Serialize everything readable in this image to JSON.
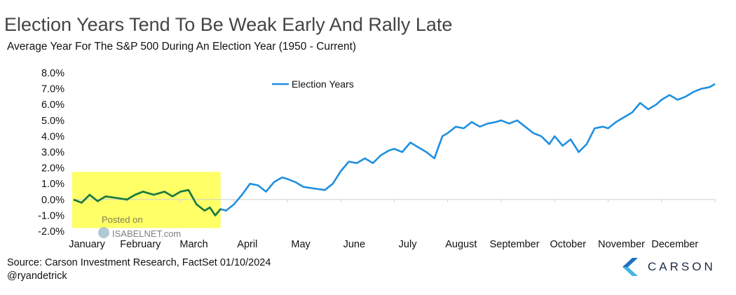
{
  "title": "Election Years Tend To Be Weak Early And Rally Late",
  "subtitle": "Average Year For The S&P 500 During An Election Year (1950 - Current)",
  "source": "Source: Carson Investment Research, FactSet 01/10/2024",
  "handle": "@ryandetrick",
  "logo_text": "CARSON",
  "watermark": {
    "line1": "Posted on",
    "line2": "ISABELNET.com"
  },
  "colors": {
    "series": "#1e90e0",
    "highlight_line": "#1e7a3c",
    "highlight_box": "#ffff66"
  },
  "chart_data": {
    "type": "line",
    "title": "Election Years Tend To Be Weak Early And Rally Late",
    "subtitle": "Average Year For The S&P 500 During An Election Year (1950 - Current)",
    "legend": {
      "position": "top-center",
      "entries": [
        "Election Years"
      ]
    },
    "ylim": [
      -2.0,
      8.0
    ],
    "y_ticks": [
      "-2.0%",
      "-1.0%",
      "0.0%",
      "1.0%",
      "2.0%",
      "3.0%",
      "4.0%",
      "5.0%",
      "6.0%",
      "7.0%",
      "8.0%"
    ],
    "x_ticks": [
      "January",
      "February",
      "March",
      "April",
      "May",
      "June",
      "July",
      "August",
      "September",
      "October",
      "November",
      "December"
    ],
    "highlight": {
      "from_month": 0,
      "to_month": 2.75,
      "label": "January - March"
    },
    "series": [
      {
        "name": "Election Years",
        "x": [
          0,
          0.15,
          0.3,
          0.45,
          0.6,
          0.8,
          1.0,
          1.15,
          1.3,
          1.5,
          1.7,
          1.85,
          2.0,
          2.15,
          2.3,
          2.45,
          2.55,
          2.65,
          2.75,
          2.85,
          3.0,
          3.15,
          3.3,
          3.45,
          3.6,
          3.75,
          3.9,
          4.0,
          4.15,
          4.3,
          4.5,
          4.7,
          4.85,
          5.0,
          5.15,
          5.3,
          5.45,
          5.6,
          5.75,
          5.9,
          6.0,
          6.15,
          6.3,
          6.45,
          6.6,
          6.75,
          6.9,
          7.0,
          7.15,
          7.3,
          7.45,
          7.6,
          7.75,
          7.9,
          8.0,
          8.15,
          8.3,
          8.45,
          8.6,
          8.75,
          8.9,
          9.0,
          9.15,
          9.3,
          9.45,
          9.6,
          9.75,
          9.9,
          10.0,
          10.15,
          10.3,
          10.45,
          10.6,
          10.75,
          10.9,
          11.0,
          11.15,
          11.3,
          11.45,
          11.6,
          11.75,
          11.9,
          12.0
        ],
        "values": [
          0.0,
          -0.2,
          0.3,
          -0.1,
          0.2,
          0.1,
          0.0,
          0.3,
          0.5,
          0.3,
          0.5,
          0.2,
          0.5,
          0.6,
          -0.3,
          -0.7,
          -0.5,
          -1.0,
          -0.6,
          -0.7,
          -0.3,
          0.3,
          1.0,
          0.9,
          0.5,
          1.1,
          1.4,
          1.3,
          1.1,
          0.8,
          0.7,
          0.6,
          1.0,
          1.8,
          2.4,
          2.3,
          2.6,
          2.3,
          2.8,
          3.1,
          3.2,
          3.0,
          3.6,
          3.3,
          3.0,
          2.6,
          4.0,
          4.2,
          4.6,
          4.5,
          4.9,
          4.6,
          4.8,
          4.9,
          5.0,
          4.8,
          5.0,
          4.6,
          4.2,
          4.0,
          3.5,
          4.0,
          3.4,
          3.8,
          3.0,
          3.5,
          4.5,
          4.6,
          4.5,
          4.9,
          5.2,
          5.5,
          6.1,
          5.7,
          6.0,
          6.3,
          6.6,
          6.3,
          6.5,
          6.8,
          7.0,
          7.1,
          7.3
        ]
      }
    ]
  }
}
